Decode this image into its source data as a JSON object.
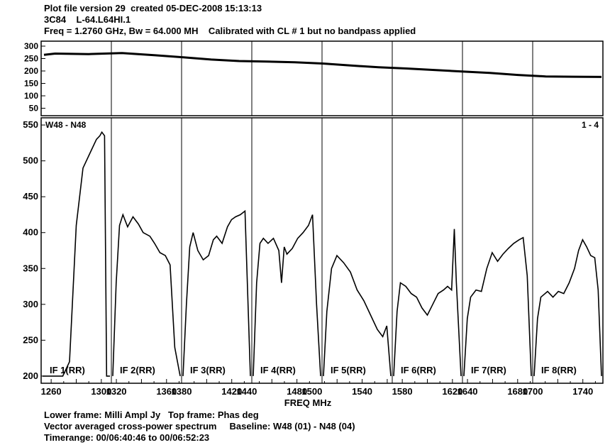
{
  "header": {
    "line1": "Plot file version 29  created 05-DEC-2008 15:13:13",
    "line2": "3C84    L-64.L64HI.1",
    "line3": "Freq = 1.2760 GHz, Bw = 64.000 MH    Calibrated with CL # 1 but no bandpass applied"
  },
  "footer": {
    "line1": "Lower frame: Milli Ampl Jy   Top frame: Phas deg",
    "line2": "Vector averaged cross-power spectrum     Baseline: W48 (01) - N48 (04)",
    "line3": "Timerange: 00/06:40:46 to 00/06:52:23"
  },
  "chart_data": [
    {
      "type": "line",
      "frame": "top",
      "ylabel": "",
      "yticks": [
        50,
        100,
        150,
        200,
        250,
        300
      ],
      "ylim": [
        20,
        320
      ],
      "x": [
        0,
        0.02,
        0.08,
        0.14,
        0.2,
        0.25,
        0.3,
        0.35,
        0.4,
        0.45,
        0.5,
        0.55,
        0.6,
        0.65,
        0.7,
        0.75,
        0.8,
        0.85,
        0.9,
        0.95,
        1.0
      ],
      "y": [
        265,
        270,
        268,
        272,
        263,
        255,
        246,
        240,
        238,
        235,
        230,
        222,
        215,
        210,
        204,
        198,
        192,
        184,
        178,
        177,
        176
      ]
    },
    {
      "type": "line",
      "frame": "bottom",
      "title": "W48 - N48",
      "corner_label": "1 - 4",
      "xlabel": "FREQ MHz",
      "ylim": [
        190,
        560
      ],
      "yticks": [
        200,
        250,
        300,
        350,
        400,
        450,
        500,
        550
      ],
      "xtick_labels": [
        "1260",
        "1300",
        "1320",
        "1360",
        "1380",
        "1420",
        "1440",
        "1480",
        "1500",
        "1540",
        "1580",
        "1620",
        "1640",
        "1680",
        "1700",
        "1740"
      ],
      "panels": [
        {
          "label": "IF 1(RR)",
          "freq_start": 1252,
          "freq_end": 1308,
          "x": [
            0,
            0.05,
            0.1,
            0.2,
            0.3,
            0.4,
            0.5,
            0.6,
            0.7,
            0.8,
            0.85,
            0.88,
            0.92,
            0.95,
            1.0
          ],
          "y": [
            200,
            200,
            200,
            200,
            200,
            220,
            410,
            490,
            510,
            530,
            535,
            540,
            535,
            200,
            200
          ]
        },
        {
          "label": "IF 2(RR)",
          "freq_start": 1316,
          "freq_end": 1372,
          "x": [
            0,
            0.05,
            0.1,
            0.15,
            0.22,
            0.3,
            0.38,
            0.45,
            0.55,
            0.62,
            0.7,
            0.78,
            0.85,
            0.92,
            1.0
          ],
          "y": [
            200,
            330,
            410,
            425,
            408,
            422,
            412,
            400,
            395,
            385,
            372,
            368,
            355,
            240,
            200
          ]
        },
        {
          "label": "IF 3(RR)",
          "freq_start": 1380,
          "freq_end": 1436,
          "x": [
            0,
            0.05,
            0.1,
            0.15,
            0.22,
            0.3,
            0.38,
            0.45,
            0.5,
            0.58,
            0.66,
            0.72,
            0.78,
            0.85,
            0.92,
            1.0
          ],
          "y": [
            200,
            300,
            380,
            400,
            375,
            362,
            368,
            390,
            395,
            385,
            408,
            418,
            422,
            425,
            430,
            200
          ]
        },
        {
          "label": "IF 4(RR)",
          "freq_start": 1444,
          "freq_end": 1500,
          "x": [
            0,
            0.05,
            0.1,
            0.15,
            0.22,
            0.3,
            0.38,
            0.42,
            0.46,
            0.5,
            0.58,
            0.66,
            0.74,
            0.82,
            0.88,
            0.94,
            1.0
          ],
          "y": [
            200,
            330,
            385,
            392,
            385,
            392,
            375,
            330,
            380,
            370,
            378,
            392,
            400,
            410,
            425,
            300,
            200
          ]
        },
        {
          "label": "IF 5(RR)",
          "freq_start": 1508,
          "freq_end": 1564,
          "x": [
            0,
            0.05,
            0.12,
            0.2,
            0.3,
            0.4,
            0.5,
            0.6,
            0.7,
            0.8,
            0.88,
            0.94,
            1.0
          ],
          "y": [
            200,
            290,
            350,
            368,
            358,
            345,
            320,
            305,
            285,
            265,
            255,
            270,
            200
          ]
        },
        {
          "label": "IF 6(RR)",
          "freq_start": 1572,
          "freq_end": 1628,
          "x": [
            0,
            0.05,
            0.1,
            0.18,
            0.26,
            0.34,
            0.42,
            0.5,
            0.58,
            0.66,
            0.74,
            0.8,
            0.86,
            0.9,
            0.93,
            1.0
          ],
          "y": [
            200,
            290,
            330,
            325,
            315,
            310,
            295,
            285,
            300,
            315,
            320,
            325,
            320,
            405,
            330,
            200
          ]
        },
        {
          "label": "IF 7(RR)",
          "freq_start": 1636,
          "freq_end": 1692,
          "x": [
            0,
            0.05,
            0.1,
            0.18,
            0.26,
            0.34,
            0.42,
            0.5,
            0.58,
            0.66,
            0.74,
            0.82,
            0.88,
            0.94,
            1.0
          ],
          "y": [
            200,
            280,
            310,
            320,
            318,
            350,
            372,
            360,
            370,
            378,
            385,
            390,
            393,
            340,
            200
          ]
        },
        {
          "label": "IF 8(RR)",
          "freq_start": 1700,
          "freq_end": 1756,
          "x": [
            0,
            0.05,
            0.1,
            0.2,
            0.28,
            0.36,
            0.44,
            0.52,
            0.6,
            0.66,
            0.72,
            0.78,
            0.84,
            0.9,
            0.95,
            1.0
          ],
          "y": [
            200,
            280,
            310,
            318,
            310,
            318,
            315,
            330,
            350,
            375,
            390,
            380,
            368,
            365,
            320,
            200
          ]
        }
      ]
    }
  ]
}
